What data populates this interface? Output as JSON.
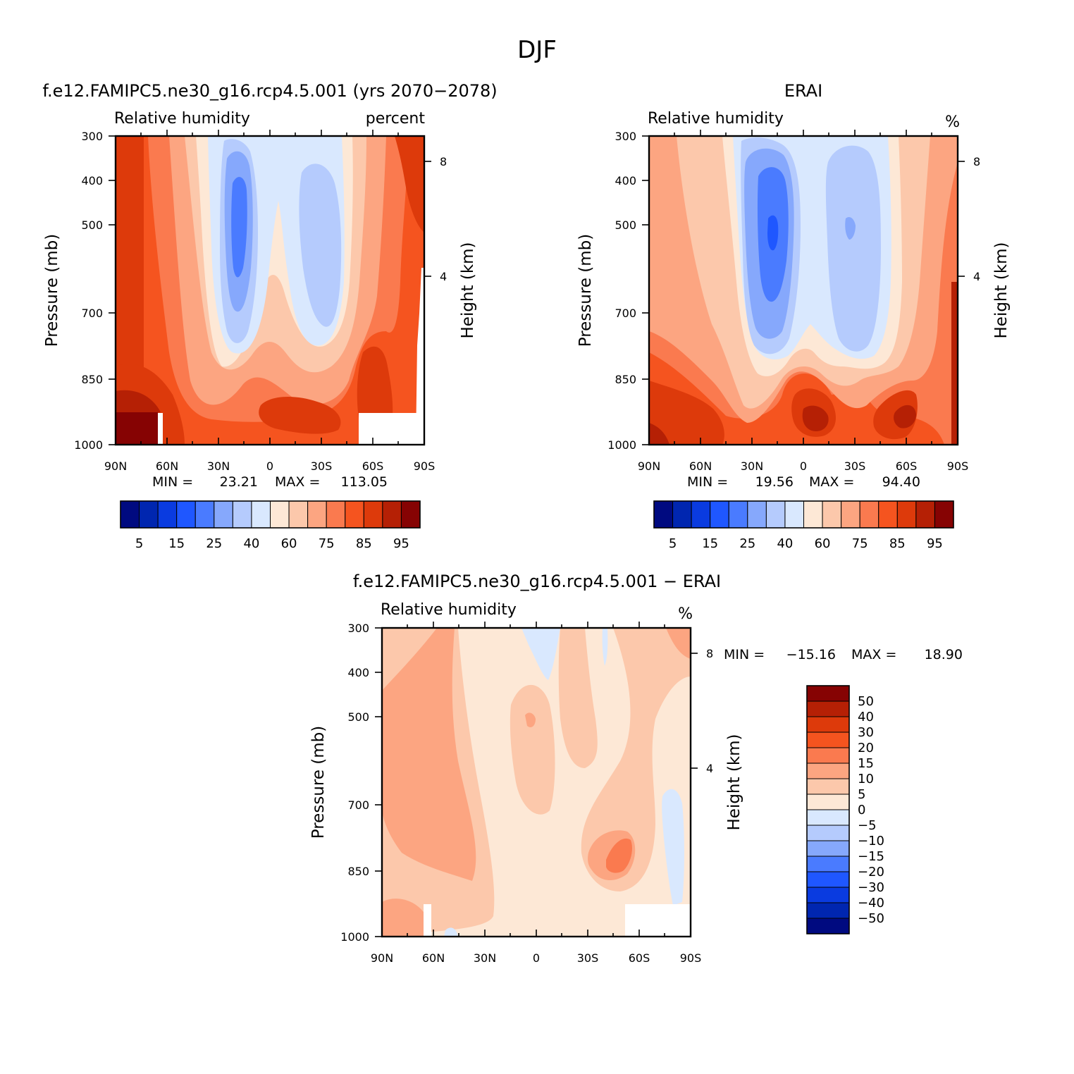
{
  "figure": {
    "title": "DJF"
  },
  "chart_data": [
    {
      "type": "heatmap",
      "title": "f.e12.FAMIPC5.ne30_g16.rcp4.5.001 (yrs 2070-2078)",
      "field": "Relative humidity",
      "units": "percent",
      "ylabel": "Pressure (mb)",
      "y2label": "Height (km)",
      "xticks": [
        "90N",
        "60N",
        "30N",
        "0",
        "30S",
        "60S",
        "90S"
      ],
      "yticks": [
        300,
        400,
        500,
        700,
        850,
        1000
      ],
      "y2ticks": [
        8,
        4
      ],
      "min_label": "MIN =",
      "min": "23.21",
      "max_label": "MAX =",
      "max": "113.05",
      "colorbar": {
        "tick_labels": [
          "5",
          "15",
          "25",
          "40",
          "60",
          "75",
          "85",
          "95"
        ],
        "colors": [
          "#000a80",
          "#0026b0",
          "#0a3be0",
          "#1f57ff",
          "#4a7bff",
          "#86a8fc",
          "#b5cbfd",
          "#d9e8fe",
          "#fde8d6",
          "#fcc8ab",
          "#fca581",
          "#fa7a4f",
          "#f5541f",
          "#dd3a0b",
          "#b52005",
          "#860303"
        ]
      }
    },
    {
      "type": "heatmap",
      "title": "ERAI",
      "field": "Relative humidity",
      "units": "%",
      "ylabel": "Pressure (mb)",
      "y2label": "Height (km)",
      "xticks": [
        "90N",
        "60N",
        "30N",
        "0",
        "30S",
        "60S",
        "90S"
      ],
      "yticks": [
        300,
        400,
        500,
        700,
        850,
        1000
      ],
      "y2ticks": [
        8,
        4
      ],
      "min_label": "MIN =",
      "min": "19.56",
      "max_label": "MAX =",
      "max": "94.40",
      "colorbar": {
        "tick_labels": [
          "5",
          "15",
          "25",
          "40",
          "60",
          "75",
          "85",
          "95"
        ],
        "colors": [
          "#000a80",
          "#0026b0",
          "#0a3be0",
          "#1f57ff",
          "#4a7bff",
          "#86a8fc",
          "#b5cbfd",
          "#d9e8fe",
          "#fde8d6",
          "#fcc8ab",
          "#fca581",
          "#fa7a4f",
          "#f5541f",
          "#dd3a0b",
          "#b52005",
          "#860303"
        ]
      }
    },
    {
      "type": "heatmap",
      "title": "f.e12.FAMIPC5.ne30_g16.rcp4.5.001 - ERAI",
      "field": "Relative humidity",
      "units": "%",
      "ylabel": "Pressure (mb)",
      "y2label": "Height (km)",
      "xticks": [
        "90N",
        "60N",
        "30N",
        "0",
        "30S",
        "60S",
        "90S"
      ],
      "yticks": [
        300,
        400,
        500,
        700,
        850,
        1000
      ],
      "y2ticks": [
        8,
        4
      ],
      "min_label": "MIN =",
      "min": "-15.16",
      "max_label": "MAX =",
      "max": "18.90",
      "colorbar": {
        "tick_labels": [
          "50",
          "40",
          "30",
          "20",
          "15",
          "10",
          "5",
          "0",
          "-5",
          "-10",
          "-15",
          "-20",
          "-30",
          "-40",
          "-50"
        ],
        "colors": [
          "#860303",
          "#b52005",
          "#dd3a0b",
          "#f5541f",
          "#fa7a4f",
          "#fca581",
          "#fcc8ab",
          "#fde8d6",
          "#d9e8fe",
          "#b5cbfd",
          "#86a8fc",
          "#4a7bff",
          "#1f57ff",
          "#0a3be0",
          "#0026b0",
          "#000a80"
        ]
      }
    }
  ]
}
